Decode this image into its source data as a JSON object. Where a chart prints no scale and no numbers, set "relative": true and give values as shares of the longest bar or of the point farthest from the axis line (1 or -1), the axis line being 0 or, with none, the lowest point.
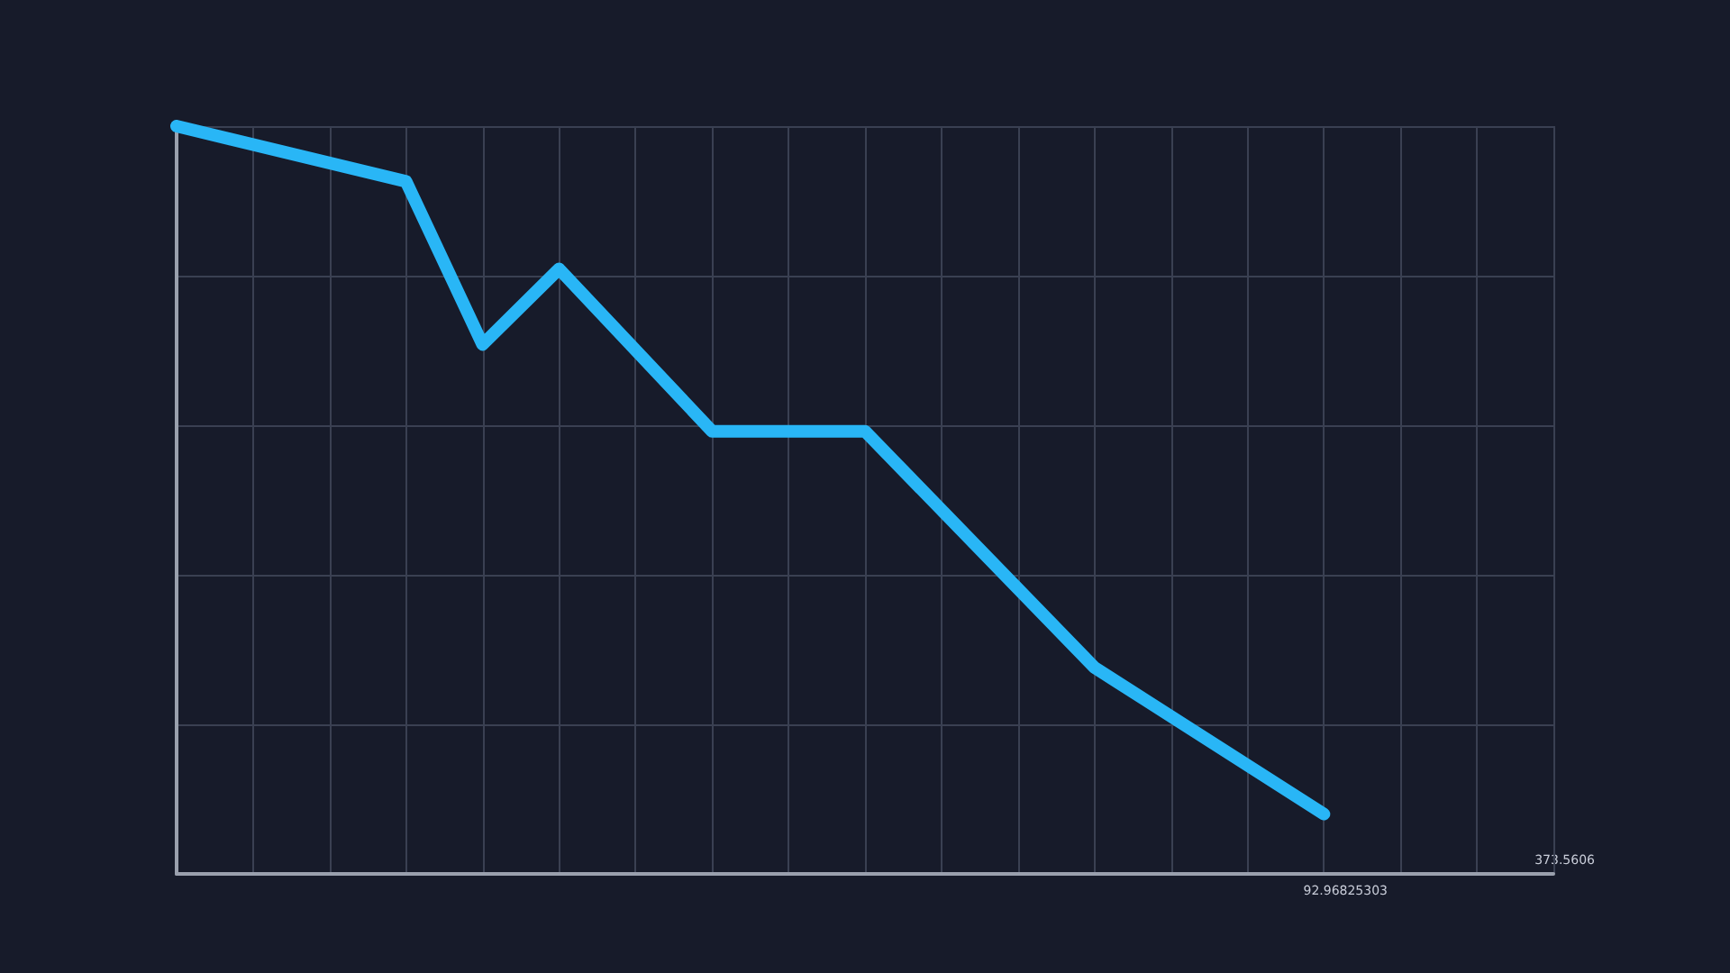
{
  "chart_data": {
    "type": "line",
    "relative": true,
    "categories": [
      null,
      null,
      null,
      null,
      null,
      null,
      null,
      null,
      null,
      null,
      null,
      null,
      null,
      null,
      null,
      null,
      null,
      null,
      null
    ],
    "series": [
      {
        "color": "#29b6f6",
        "values": [
          1,
          null,
          null,
          0.926,
          0.708,
          0.809,
          null,
          0.592,
          null,
          0.592,
          null,
          null,
          0.276,
          null,
          null,
          0.08,
          null,
          null,
          null
        ]
      }
    ],
    "annotations": [
      "92.96825303",
      "373.5606"
    ],
    "grid": true,
    "line_style": "solid"
  }
}
